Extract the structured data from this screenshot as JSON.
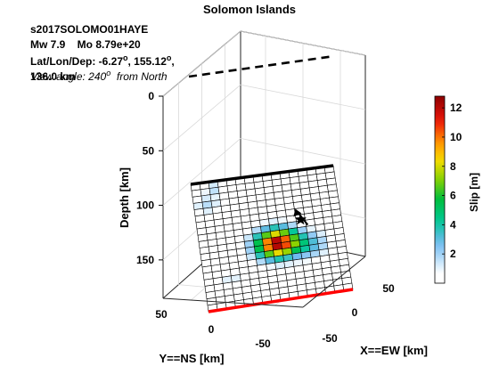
{
  "figure": {
    "title": "Solomon Islands",
    "event_id": "s2017SOLOMO01HAYE",
    "mw_line": "Mw 7.9    Mo 8.79e+20",
    "latlon_line": "Lat/Lon/Dep: -6.27",
    "latlon_mid": ", 155.12",
    "latlon_end": ",",
    "depth_line": "136.0 km",
    "view_angle_label": "View angle: 240",
    "view_angle_suffix": "  from North",
    "degree_symbol": "o"
  },
  "chart_data": {
    "type": "heatmap",
    "title": "Solomon Islands",
    "zlabel": "Depth [km]",
    "xlabel": "X==EW [km]",
    "ylabel": "Y==NS [km]",
    "colorbar_label": "Slip [m]",
    "depth_ticks": [
      "0",
      "50",
      "100",
      "150"
    ],
    "x_ticks": [
      "50",
      "0",
      "-50"
    ],
    "y_ticks": [
      "50",
      "0",
      "-50"
    ],
    "colorbar_ticks": [
      "2",
      "4",
      "6",
      "8",
      "10",
      "12"
    ],
    "colorbar_range": [
      0,
      12.8
    ],
    "grid_rows": 20,
    "grid_cols": 16,
    "hypocenter": {
      "row": 7.8,
      "col": 11.5
    },
    "slip_patches": [
      {
        "row": 11.0,
        "col": 8.5,
        "peak": 12.5,
        "sigma": 1.6
      },
      {
        "row": 12.0,
        "col": 12.0,
        "peak": 3.0,
        "sigma": 1.5
      },
      {
        "row": 3.5,
        "col": 1.5,
        "peak": 1.6,
        "sigma": 1.2
      },
      {
        "row": 1.0,
        "col": 2.5,
        "peak": 1.5,
        "sigma": 0.8
      },
      {
        "row": 15.5,
        "col": 3.0,
        "peak": 1.2,
        "sigma": 1.2
      },
      {
        "row": 8.0,
        "col": 2.0,
        "peak": 0.8,
        "sigma": 0.9
      }
    ],
    "colors": {
      "top_edge": "#000000",
      "bottom_edge": "#ff0000",
      "axis_box": "#262626",
      "grid": "#d9d9d9"
    }
  }
}
